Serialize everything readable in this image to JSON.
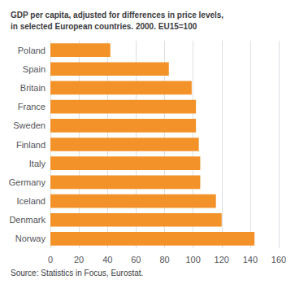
{
  "chart_data": {
    "type": "bar",
    "orientation": "horizontal",
    "title": "GDP per capita, adjusted for differences in price levels,\nin selected European countries. 2000. EU15=100",
    "annotations": [
      "Source: Statistics in Focus, Eurostat."
    ],
    "categories": [
      "Poland",
      "Spain",
      "Britain",
      "France",
      "Sweden",
      "Finland",
      "Italy",
      "Germany",
      "Iceland",
      "Denmark",
      "Norway"
    ],
    "values": [
      42,
      83,
      99,
      102,
      102,
      104,
      105,
      105,
      116,
      120,
      143
    ],
    "color": "#F4922A",
    "xlim": [
      0,
      160
    ],
    "xticks": [
      0,
      20,
      40,
      60,
      80,
      100,
      120,
      140,
      160
    ],
    "grid": true
  }
}
